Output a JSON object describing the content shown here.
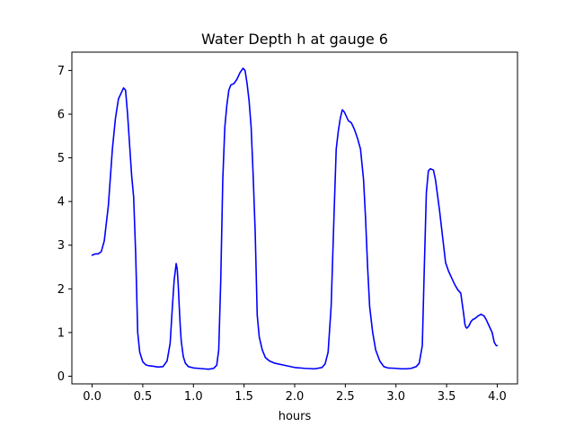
{
  "chart_data": {
    "type": "line",
    "title": "Water Depth h at gauge 6",
    "xlabel": "hours",
    "ylabel": "",
    "xlim": [
      -0.2,
      4.2
    ],
    "ylim": [
      -0.175,
      7.42
    ],
    "xticks": [
      "0.0",
      "0.5",
      "1.0",
      "1.5",
      "2.0",
      "2.5",
      "3.0",
      "3.5",
      "4.0"
    ],
    "yticks": [
      "0",
      "1",
      "2",
      "3",
      "4",
      "5",
      "6",
      "7"
    ],
    "grid": false,
    "legend": "none",
    "series": [
      {
        "color": "#0000ff",
        "x": [
          0.0,
          0.03,
          0.06,
          0.09,
          0.12,
          0.16,
          0.2,
          0.23,
          0.26,
          0.29,
          0.31,
          0.33,
          0.35,
          0.37,
          0.39,
          0.41,
          0.43,
          0.45,
          0.47,
          0.5,
          0.53,
          0.56,
          0.6,
          0.65,
          0.7,
          0.74,
          0.77,
          0.79,
          0.81,
          0.83,
          0.84,
          0.85,
          0.86,
          0.87,
          0.88,
          0.9,
          0.92,
          0.95,
          1.0,
          1.05,
          1.1,
          1.15,
          1.2,
          1.23,
          1.25,
          1.27,
          1.29,
          1.31,
          1.33,
          1.35,
          1.37,
          1.4,
          1.43,
          1.46,
          1.49,
          1.51,
          1.53,
          1.55,
          1.57,
          1.59,
          1.61,
          1.63,
          1.65,
          1.68,
          1.71,
          1.75,
          1.8,
          1.9,
          2.0,
          2.1,
          2.2,
          2.27,
          2.3,
          2.33,
          2.36,
          2.39,
          2.41,
          2.43,
          2.45,
          2.47,
          2.49,
          2.51,
          2.53,
          2.56,
          2.59,
          2.62,
          2.65,
          2.68,
          2.7,
          2.72,
          2.74,
          2.77,
          2.8,
          2.84,
          2.88,
          2.92,
          3.0,
          3.05,
          3.1,
          3.15,
          3.2,
          3.23,
          3.26,
          3.28,
          3.3,
          3.32,
          3.34,
          3.37,
          3.39,
          3.41,
          3.43,
          3.46,
          3.49,
          3.52,
          3.55,
          3.58,
          3.61,
          3.64,
          3.67,
          3.68,
          3.69,
          3.7,
          3.72,
          3.74,
          3.76,
          3.78,
          3.81,
          3.84,
          3.87,
          3.89,
          3.92,
          3.95,
          3.97,
          3.99,
          4.0
        ],
        "y": [
          2.77,
          2.8,
          2.8,
          2.85,
          3.1,
          3.9,
          5.2,
          5.9,
          6.35,
          6.5,
          6.6,
          6.55,
          6.0,
          5.3,
          4.6,
          4.1,
          2.8,
          1.0,
          0.55,
          0.33,
          0.26,
          0.24,
          0.23,
          0.21,
          0.22,
          0.35,
          0.75,
          1.5,
          2.2,
          2.58,
          2.45,
          2.1,
          1.6,
          1.15,
          0.8,
          0.45,
          0.3,
          0.22,
          0.19,
          0.18,
          0.17,
          0.16,
          0.18,
          0.25,
          0.6,
          2.2,
          4.5,
          5.7,
          6.2,
          6.55,
          6.67,
          6.7,
          6.8,
          6.95,
          7.05,
          7.0,
          6.7,
          6.3,
          5.7,
          4.6,
          3.3,
          1.4,
          0.9,
          0.6,
          0.43,
          0.35,
          0.3,
          0.25,
          0.2,
          0.18,
          0.17,
          0.2,
          0.28,
          0.55,
          1.6,
          3.8,
          5.2,
          5.6,
          5.9,
          6.1,
          6.05,
          5.95,
          5.85,
          5.8,
          5.65,
          5.45,
          5.2,
          4.5,
          3.6,
          2.5,
          1.6,
          1.0,
          0.6,
          0.35,
          0.22,
          0.19,
          0.18,
          0.17,
          0.17,
          0.18,
          0.22,
          0.3,
          0.7,
          2.5,
          4.2,
          4.7,
          4.75,
          4.72,
          4.5,
          4.15,
          3.8,
          3.2,
          2.6,
          2.4,
          2.25,
          2.1,
          1.98,
          1.9,
          1.4,
          1.2,
          1.12,
          1.1,
          1.15,
          1.25,
          1.3,
          1.32,
          1.38,
          1.42,
          1.38,
          1.3,
          1.15,
          1.0,
          0.78,
          0.7,
          0.7
        ]
      }
    ]
  }
}
